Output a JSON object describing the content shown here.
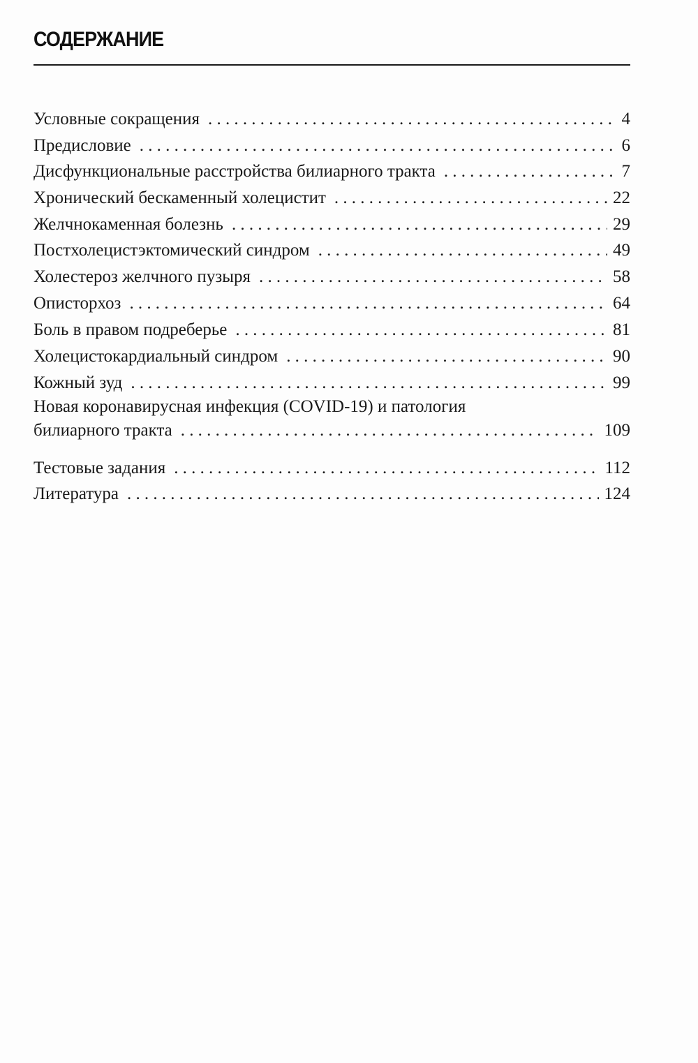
{
  "title": "СОДЕРЖАНИЕ",
  "entries": [
    {
      "label": "Условные сокращения",
      "page": "4"
    },
    {
      "label": "Предисловие",
      "page": "6"
    },
    {
      "label": "Дисфункциональные расстройства билиарного тракта",
      "page": "7"
    },
    {
      "label": "Хронический бескаменный холецистит",
      "page": "22"
    },
    {
      "label": "Желчнокаменная болезнь",
      "page": "29"
    },
    {
      "label": "Постхолецистэктомический синдром",
      "page": "49"
    },
    {
      "label": "Холестероз желчного пузыря",
      "page": "58"
    },
    {
      "label": "Описторхоз",
      "page": "64"
    },
    {
      "label": "Боль в правом подреберье",
      "page": "81"
    },
    {
      "label": "Холецистокардиальный синдром",
      "page": "90"
    },
    {
      "label": "Кожный зуд",
      "page": "99"
    },
    {
      "label_line1": "Новая коронавирусная инфекция (COVID-19) и патология",
      "label": "билиарного тракта",
      "page": "109"
    },
    {
      "label": "Тестовые задания",
      "page": "112"
    },
    {
      "label": "Литература",
      "page": "124"
    }
  ]
}
